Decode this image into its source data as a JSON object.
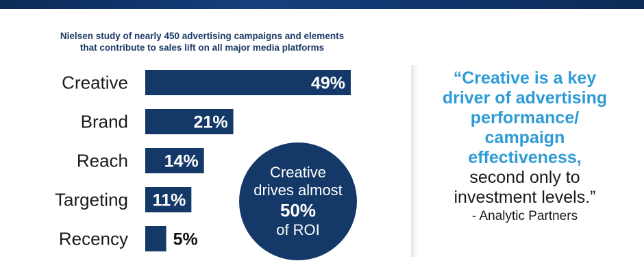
{
  "study_title": {
    "line1": "Nielsen study of nearly 450 advertising campaigns and elements",
    "line2": "that contribute to sales lift on all major media platforms"
  },
  "colors": {
    "bar": "#143968",
    "accent_quote": "#2e9bd6",
    "circle": "#143968"
  },
  "chart_data": {
    "type": "bar",
    "orientation": "horizontal",
    "title": "Nielsen study of nearly 450 advertising campaigns and elements that contribute to sales lift on all major media platforms",
    "categories": [
      "Creative",
      "Brand",
      "Reach",
      "Targeting",
      "Recency"
    ],
    "values": [
      49,
      21,
      14,
      11,
      5
    ],
    "value_labels": [
      "49%",
      "21%",
      "14%",
      "11%",
      "5%"
    ],
    "unit": "%",
    "xlim": [
      0,
      49
    ],
    "grid": false,
    "legend": "none"
  },
  "roi_callout": {
    "line1": "Creative",
    "line2": "drives almost",
    "line3": "50%",
    "line4": "of ROI"
  },
  "quote": {
    "highlight_lines": [
      "“Creative is a key",
      "driver of advertising",
      "performance/",
      "campaign",
      "effectiveness,"
    ],
    "plain_lines": [
      "second only to",
      "investment levels.”"
    ],
    "attribution": "- Analytic Partners"
  }
}
